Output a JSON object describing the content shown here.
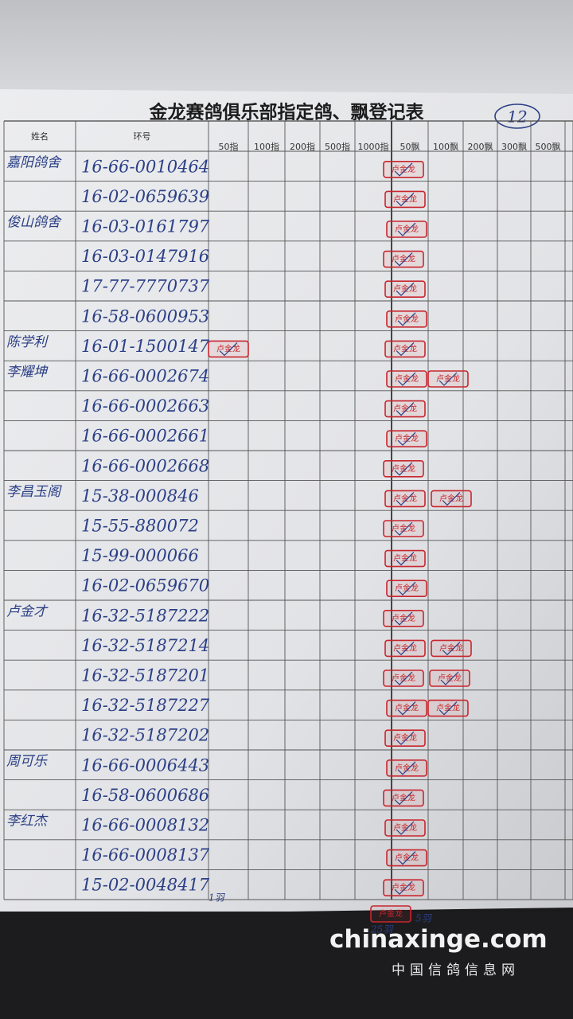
{
  "header": {
    "title": "金龙赛鸽俱乐部指定鸽、飘登记表",
    "page_number": "12"
  },
  "table": {
    "columns": [
      "姓名",
      "环号",
      "50指",
      "100指",
      "200指",
      "500指",
      "1000指",
      "50飘",
      "100飘",
      "200飘",
      "300飘",
      "500飘"
    ],
    "rows": [
      {
        "name": "嘉阳鸽舍",
        "ring": "16-66-0010464"
      },
      {
        "ring": "16-02-0659639"
      },
      {
        "name": "俊山鸽舍",
        "ring": "16-03-0161797"
      },
      {
        "ring": "16-03-0147916"
      },
      {
        "ring": "17-77-7770737"
      },
      {
        "ring": "16-58-0600953"
      },
      {
        "name": "陈学利",
        "ring": "16-01-1500147"
      },
      {
        "name": "李耀坤",
        "ring": "16-66-0002674"
      },
      {
        "ring": "16-66-0002663"
      },
      {
        "ring": "16-66-0002661"
      },
      {
        "ring": "16-66-0002668"
      },
      {
        "name": "李昌玉阁",
        "ring": "15-38-000846"
      },
      {
        "ring": "15-55-880072"
      },
      {
        "ring": "15-99-000066"
      },
      {
        "ring": "16-02-0659670"
      },
      {
        "name": "卢金才",
        "ring": "16-32-5187222"
      },
      {
        "ring": "16-32-5187214"
      },
      {
        "ring": "16-32-5187201"
      },
      {
        "ring": "16-32-5187227"
      },
      {
        "ring": "16-32-5187202"
      },
      {
        "name": "周可乐",
        "ring": "16-66-0006443"
      },
      {
        "ring": "16-58-0600686"
      },
      {
        "name": "李红杰",
        "ring": "16-66-0008132"
      },
      {
        "ring": "16-66-0008137"
      },
      {
        "ring": "15-02-0048417"
      }
    ]
  },
  "stamp_text": "卢金龙",
  "notes": [
    "1羽",
    "25羽",
    "5羽"
  ],
  "watermark": {
    "site": "chinaxinge.com",
    "name": "中国信鸽信息网"
  }
}
